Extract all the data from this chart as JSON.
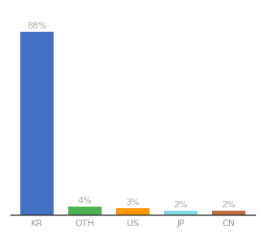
{
  "categories": [
    "KR",
    "OTH",
    "US",
    "JP",
    "CN"
  ],
  "values": [
    88,
    4,
    3,
    2,
    2
  ],
  "labels": [
    "88%",
    "4%",
    "3%",
    "2%",
    "2%"
  ],
  "bar_colors": [
    "#4472c4",
    "#4caf50",
    "#ff9800",
    "#80d8e8",
    "#c07040"
  ],
  "background_color": "#ffffff",
  "label_color": "#aaaaaa",
  "label_fontsize": 8,
  "tick_fontsize": 8,
  "tick_color": "#999999",
  "ylim": [
    0,
    95
  ],
  "bar_width": 0.7,
  "figsize": [
    3.2,
    3.0
  ],
  "dpi": 100
}
